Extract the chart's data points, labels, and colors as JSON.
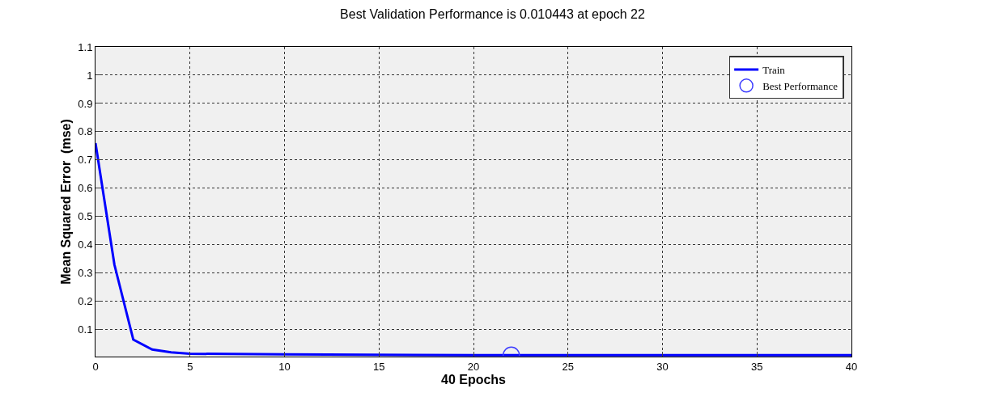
{
  "chart_data": {
    "type": "line",
    "title": "Best Validation Performance is 0.010443 at epoch 22",
    "xlabel": "40 Epochs",
    "ylabel": "Mean Squared Error  (mse)",
    "series": [
      {
        "name": "Train",
        "color": "#0000ff",
        "marker": "none",
        "x": [
          0,
          1,
          2,
          3,
          4,
          5,
          10,
          20,
          40
        ],
        "values": [
          0.76,
          0.33,
          0.065,
          0.03,
          0.02,
          0.015,
          0.013,
          0.01,
          0.01
        ]
      },
      {
        "name": "Best Performance",
        "type": "scatter",
        "color": "#3c3cff",
        "marker": "circle",
        "x": [
          22
        ],
        "values": [
          0.01
        ]
      }
    ],
    "xlim": [
      0,
      40
    ],
    "xticks": [
      0,
      5,
      10,
      15,
      20,
      25,
      30,
      35,
      40
    ],
    "ylim": [
      0.005,
      1.1
    ],
    "yticks": [
      0.1,
      0.2,
      0.3,
      0.4,
      0.5,
      0.6,
      0.7,
      0.8,
      0.9,
      1,
      1.1
    ],
    "grid": true,
    "legend": "top right"
  }
}
